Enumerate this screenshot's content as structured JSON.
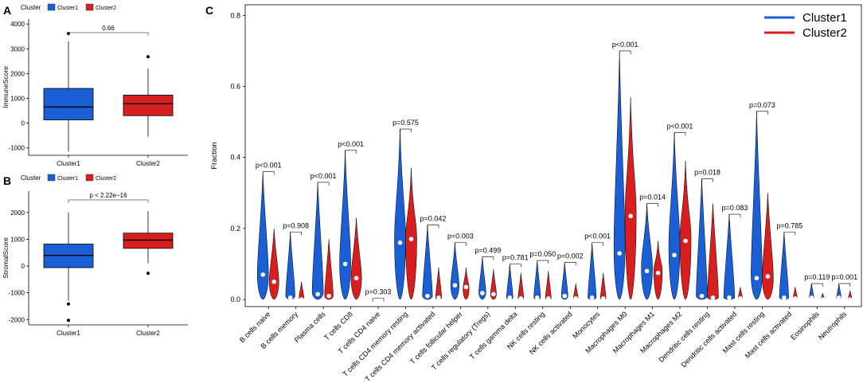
{
  "colors": {
    "cluster1": "#1a5fd6",
    "cluster2": "#d81e1e",
    "axis": "#000000",
    "bracket": "#555555"
  },
  "chart_data": [
    {
      "panel": "A",
      "type": "box",
      "legend_title": "Cluster",
      "legend": [
        "Cluster1",
        "Cluster2"
      ],
      "ylabel": "ImmuneScore",
      "ylim": [
        -1300,
        4200
      ],
      "yticks": [
        -1000,
        0,
        1000,
        2000,
        3000,
        4000
      ],
      "categories": [
        "Cluster1",
        "Cluster2"
      ],
      "boxes": [
        {
          "name": "Cluster1",
          "min": -1150,
          "q1": 130,
          "median": 650,
          "q3": 1400,
          "max": 3300,
          "outliers": [
            3620
          ]
        },
        {
          "name": "Cluster2",
          "min": -550,
          "q1": 300,
          "median": 780,
          "q3": 1130,
          "max": 2200,
          "outliers": [
            2680
          ]
        }
      ],
      "pvalue": "0.66"
    },
    {
      "panel": "B",
      "type": "box",
      "legend_title": "Cluster",
      "legend": [
        "Cluster1",
        "Cluster2"
      ],
      "ylabel": "StromalScore",
      "ylim": [
        -2200,
        2800
      ],
      "yticks": [
        -2000,
        -1000,
        0,
        1000,
        2000
      ],
      "categories": [
        "Cluster1",
        "Cluster2"
      ],
      "boxes": [
        {
          "name": "Cluster1",
          "min": -1300,
          "q1": -60,
          "median": 400,
          "q3": 820,
          "max": 2000,
          "outliers": [
            -1420,
            -2030
          ]
        },
        {
          "name": "Cluster2",
          "min": 100,
          "q1": 660,
          "median": 970,
          "q3": 1230,
          "max": 2050,
          "outliers": [
            -270
          ]
        }
      ],
      "pvalue": "p < 2.22e−16"
    },
    {
      "panel": "C",
      "type": "violin",
      "ylabel": "Fraction",
      "ylim": [
        -0.02,
        0.83
      ],
      "yticks": [
        0.0,
        0.2,
        0.4,
        0.6,
        0.8
      ],
      "legend": [
        "Cluster1",
        "Cluster2"
      ],
      "categories": [
        "B cells naive",
        "B cells memory",
        "Plasma cells",
        "T cells CD8",
        "T cells CD4 naive",
        "T cells CD4 memory resting",
        "T cells CD4 memory activated",
        "T cells follicular helper",
        "T cells regulatory (Tregs)",
        "T cells gamma delta",
        "NK cells resting",
        "NK cells activated",
        "Monocytes",
        "Macrophages M0",
        "Macrophages M1",
        "Macrophages M2",
        "Dendritic cells resting",
        "Dendritic cells activated",
        "Mast cells resting",
        "Mast cells activated",
        "Eosinophils",
        "Neutrophils"
      ],
      "pvalues": [
        "p<0.001",
        "p=0.908",
        "p<0.001",
        "p<0.001",
        "p=0.303",
        "p=0.575",
        "p=0.042",
        "p=0.003",
        "p=0.499",
        "p=0.781",
        "p=0.050",
        "p=0.002",
        "p<0.001",
        "p<0.001",
        "p=0.014",
        "p<0.001",
        "p=0.018",
        "p=0.083",
        "p=0.073",
        "p=0.785",
        "p=0.119",
        "p=0.001"
      ],
      "series": [
        {
          "name": "Cluster1",
          "max": [
            0.36,
            0.19,
            0.33,
            0.42,
            0.003,
            0.48,
            0.21,
            0.16,
            0.12,
            0.1,
            0.11,
            0.105,
            0.16,
            0.7,
            0.27,
            0.47,
            0.34,
            0.24,
            0.53,
            0.19,
            0.045,
            0.045
          ],
          "median": [
            0.07,
            0.005,
            0.015,
            0.1,
            0.0,
            0.16,
            0.01,
            0.04,
            0.018,
            0.005,
            0.005,
            0.01,
            0.005,
            0.13,
            0.08,
            0.125,
            0.01,
            0.005,
            0.06,
            0.005,
            0.005,
            0.005
          ],
          "peak": [
            0.07,
            0.01,
            0.02,
            0.1,
            0.0,
            0.17,
            0.01,
            0.04,
            0.02,
            0.005,
            0.005,
            0.01,
            0.005,
            0.15,
            0.09,
            0.15,
            0.01,
            0.005,
            0.07,
            0.005,
            0.005,
            0.005
          ]
        },
        {
          "name": "Cluster2",
          "max": [
            0.2,
            0.05,
            0.17,
            0.23,
            0.003,
            0.37,
            0.09,
            0.09,
            0.085,
            0.075,
            0.08,
            0.045,
            0.075,
            0.57,
            0.165,
            0.39,
            0.27,
            0.035,
            0.3,
            0.035,
            0.018,
            0.025
          ],
          "median": [
            0.05,
            0.0,
            0.01,
            0.06,
            0.0,
            0.17,
            0.005,
            0.035,
            0.015,
            0.003,
            0.003,
            0.003,
            0.003,
            0.235,
            0.075,
            0.165,
            0.005,
            0.003,
            0.065,
            0.003,
            0.0,
            0.0
          ],
          "peak": [
            0.05,
            0.005,
            0.01,
            0.06,
            0.0,
            0.17,
            0.005,
            0.03,
            0.015,
            0.003,
            0.003,
            0.003,
            0.003,
            0.24,
            0.08,
            0.17,
            0.005,
            0.003,
            0.06,
            0.003,
            0.0,
            0.0
          ]
        }
      ]
    }
  ]
}
